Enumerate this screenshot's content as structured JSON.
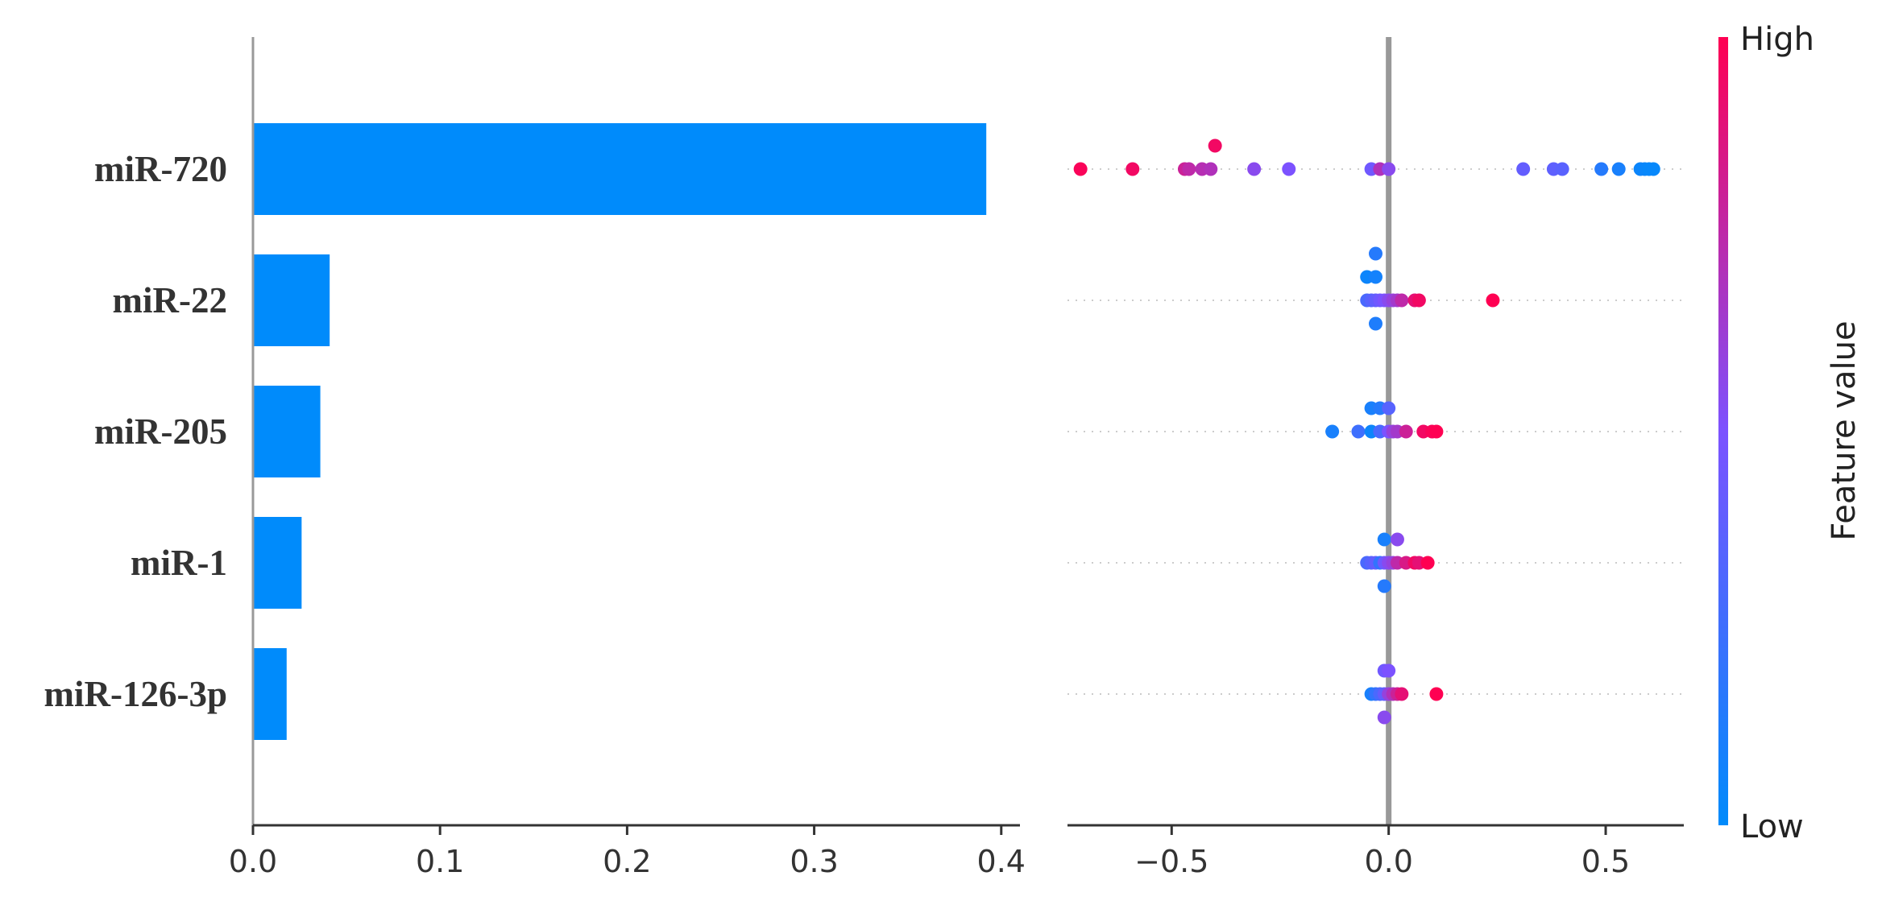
{
  "chart_data": [
    {
      "type": "bar",
      "orientation": "horizontal",
      "categories": [
        "miR-720",
        "miR-22",
        "miR-205",
        "miR-1",
        "miR-126-3p"
      ],
      "values": [
        0.392,
        0.041,
        0.036,
        0.026,
        0.018
      ],
      "xlim": [
        0,
        0.41
      ],
      "xticks": [
        0.0,
        0.1,
        0.2,
        0.3,
        0.4
      ],
      "xtick_labels": [
        "0.0",
        "0.1",
        "0.2",
        "0.3",
        "0.4"
      ],
      "color": "#008bfb",
      "grid": false
    },
    {
      "type": "scatter",
      "subtype": "beeswarm",
      "categories": [
        "miR-720",
        "miR-22",
        "miR-205",
        "miR-1",
        "miR-126-3p"
      ],
      "xlim": [
        -0.74,
        0.68
      ],
      "xticks": [
        -0.5,
        0.0,
        0.5
      ],
      "xtick_labels": [
        "−0.5",
        "0.0",
        "0.5"
      ],
      "zero_line": true,
      "series": [
        {
          "category": "miR-720",
          "points": [
            {
              "x": -0.4,
              "row": -1,
              "v": 0.95
            },
            {
              "x": -0.71,
              "row": 0,
              "v": 0.98
            },
            {
              "x": -0.59,
              "row": 0,
              "v": 0.95
            },
            {
              "x": -0.47,
              "row": 0,
              "v": 0.8
            },
            {
              "x": -0.46,
              "row": 0,
              "v": 0.75
            },
            {
              "x": -0.43,
              "row": 0,
              "v": 0.72
            },
            {
              "x": -0.41,
              "row": 0,
              "v": 0.7
            },
            {
              "x": -0.31,
              "row": 0,
              "v": 0.55
            },
            {
              "x": -0.23,
              "row": 0,
              "v": 0.5
            },
            {
              "x": -0.04,
              "row": 0,
              "v": 0.45
            },
            {
              "x": -0.02,
              "row": 0,
              "v": 0.7
            },
            {
              "x": 0.0,
              "row": 0,
              "v": 0.55
            },
            {
              "x": 0.31,
              "row": 0,
              "v": 0.4
            },
            {
              "x": 0.38,
              "row": 0,
              "v": 0.38
            },
            {
              "x": 0.4,
              "row": 0,
              "v": 0.36
            },
            {
              "x": 0.49,
              "row": 0,
              "v": 0.15
            },
            {
              "x": 0.53,
              "row": 0,
              "v": 0.1
            },
            {
              "x": 0.58,
              "row": 0,
              "v": 0.05
            },
            {
              "x": 0.59,
              "row": 0,
              "v": 0.04
            },
            {
              "x": 0.6,
              "row": 0,
              "v": 0.03
            },
            {
              "x": 0.61,
              "row": 0,
              "v": 0.03
            }
          ]
        },
        {
          "category": "miR-22",
          "points": [
            {
              "x": -0.03,
              "row": -2,
              "v": 0.15
            },
            {
              "x": -0.05,
              "row": -1,
              "v": 0.05
            },
            {
              "x": -0.03,
              "row": -1,
              "v": 0.08
            },
            {
              "x": -0.05,
              "row": 0,
              "v": 0.3
            },
            {
              "x": -0.04,
              "row": 0,
              "v": 0.35
            },
            {
              "x": -0.03,
              "row": 0,
              "v": 0.4
            },
            {
              "x": -0.02,
              "row": 0,
              "v": 0.45
            },
            {
              "x": -0.01,
              "row": 0,
              "v": 0.5
            },
            {
              "x": 0.0,
              "row": 0,
              "v": 0.55
            },
            {
              "x": 0.01,
              "row": 0,
              "v": 0.6
            },
            {
              "x": 0.02,
              "row": 0,
              "v": 0.65
            },
            {
              "x": 0.03,
              "row": 0,
              "v": 0.75
            },
            {
              "x": 0.06,
              "row": 0,
              "v": 0.9
            },
            {
              "x": 0.07,
              "row": 0,
              "v": 0.95
            },
            {
              "x": 0.24,
              "row": 0,
              "v": 1.0
            },
            {
              "x": -0.03,
              "row": 1,
              "v": 0.12
            }
          ]
        },
        {
          "category": "miR-205",
          "points": [
            {
              "x": -0.04,
              "row": -1,
              "v": 0.1
            },
            {
              "x": -0.02,
              "row": -1,
              "v": 0.15
            },
            {
              "x": 0.0,
              "row": -1,
              "v": 0.35
            },
            {
              "x": -0.13,
              "row": 0,
              "v": 0.1
            },
            {
              "x": -0.07,
              "row": 0,
              "v": 0.25
            },
            {
              "x": -0.04,
              "row": 0,
              "v": 0.05
            },
            {
              "x": -0.02,
              "row": 0,
              "v": 0.3
            },
            {
              "x": 0.0,
              "row": 0,
              "v": 0.5
            },
            {
              "x": 0.01,
              "row": 0,
              "v": 0.6
            },
            {
              "x": 0.02,
              "row": 0,
              "v": 0.65
            },
            {
              "x": 0.04,
              "row": 0,
              "v": 0.8
            },
            {
              "x": 0.08,
              "row": 0,
              "v": 0.95
            },
            {
              "x": 0.1,
              "row": 0,
              "v": 0.98
            },
            {
              "x": 0.11,
              "row": 0,
              "v": 1.0
            }
          ]
        },
        {
          "category": "miR-1",
          "points": [
            {
              "x": -0.01,
              "row": -1,
              "v": 0.1
            },
            {
              "x": 0.02,
              "row": -1,
              "v": 0.55
            },
            {
              "x": -0.05,
              "row": 0,
              "v": 0.3
            },
            {
              "x": -0.04,
              "row": 0,
              "v": 0.35
            },
            {
              "x": -0.03,
              "row": 0,
              "v": 0.4
            },
            {
              "x": -0.02,
              "row": 0,
              "v": 0.2
            },
            {
              "x": -0.01,
              "row": 0,
              "v": 0.45
            },
            {
              "x": 0.0,
              "row": 0,
              "v": 0.55
            },
            {
              "x": 0.01,
              "row": 0,
              "v": 0.6
            },
            {
              "x": 0.02,
              "row": 0,
              "v": 0.75
            },
            {
              "x": 0.04,
              "row": 0,
              "v": 0.85
            },
            {
              "x": 0.06,
              "row": 0,
              "v": 0.95
            },
            {
              "x": 0.07,
              "row": 0,
              "v": 0.9
            },
            {
              "x": 0.09,
              "row": 0,
              "v": 1.0
            },
            {
              "x": -0.01,
              "row": 1,
              "v": 0.15
            }
          ]
        },
        {
          "category": "miR-126-3p",
          "points": [
            {
              "x": -0.01,
              "row": -1,
              "v": 0.45
            },
            {
              "x": 0.0,
              "row": -1,
              "v": 0.5
            },
            {
              "x": -0.04,
              "row": 0,
              "v": 0.1
            },
            {
              "x": -0.03,
              "row": 0,
              "v": 0.2
            },
            {
              "x": -0.02,
              "row": 0,
              "v": 0.3
            },
            {
              "x": -0.01,
              "row": 0,
              "v": 0.4
            },
            {
              "x": 0.0,
              "row": 0,
              "v": 0.6
            },
            {
              "x": 0.01,
              "row": 0,
              "v": 0.7
            },
            {
              "x": 0.02,
              "row": 0,
              "v": 0.8
            },
            {
              "x": 0.03,
              "row": 0,
              "v": 0.9
            },
            {
              "x": 0.11,
              "row": 0,
              "v": 1.0
            },
            {
              "x": -0.01,
              "row": 1,
              "v": 0.55
            }
          ]
        }
      ]
    }
  ],
  "colorbar": {
    "label": "Feature value",
    "high_label": "High",
    "low_label": "Low",
    "color_low": "#008bfb",
    "color_high": "#ff0052"
  }
}
